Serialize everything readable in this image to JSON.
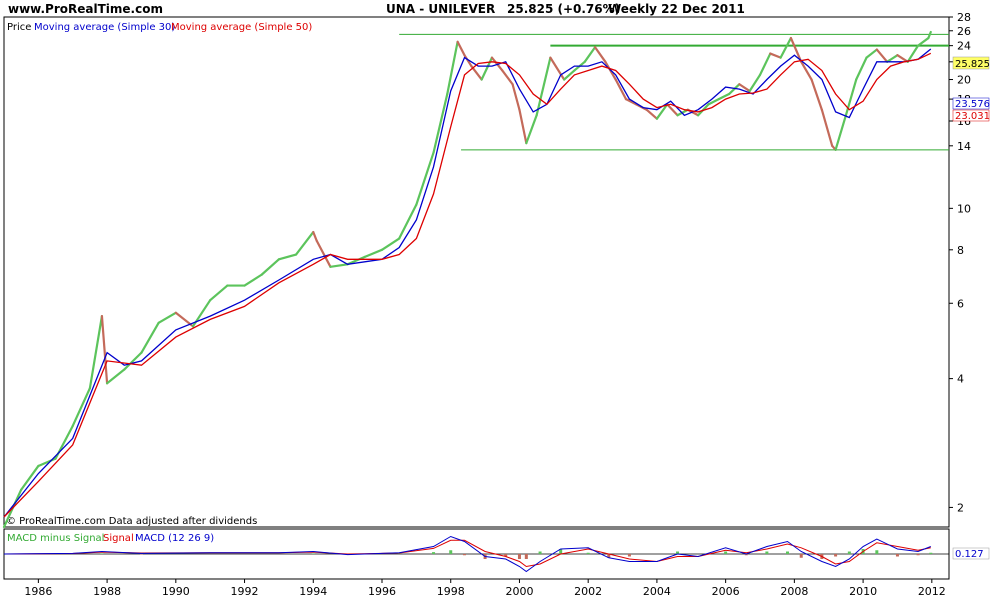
{
  "header": {
    "site": "www.ProRealTime.com",
    "instrument": "UNA - UNILEVER",
    "last_price": "25.825 (+0.76%)",
    "period": "Weekly  22 Dec 2011"
  },
  "legend": {
    "price": "Price",
    "ma30": "Moving average (Simple 30)",
    "ma50": "Moving average (Simple 50)"
  },
  "footer_note": "© ProRealTime.com  Data adjusted after dividends",
  "macd_legend": {
    "hist": "MACD minus Signal",
    "signal": "Signal",
    "macd": "MACD (12 26 9)"
  },
  "price_labels": {
    "last": "25.825",
    "ma30": "23.576",
    "ma50": "23.031",
    "macd": "0.127"
  },
  "colors": {
    "price_up": "#5cc45c",
    "price_down": "#c46a5a",
    "ma30": "#0000cc",
    "ma50": "#dd0000",
    "hline": "#33aa33",
    "frame": "#000000"
  },
  "chart_data": {
    "type": "line",
    "title": "UNA - UNILEVER",
    "x_ticks": [
      "1986",
      "1988",
      "1990",
      "1992",
      "1994",
      "1996",
      "1998",
      "2000",
      "2002",
      "2004",
      "2006",
      "2008",
      "2010",
      "2012"
    ],
    "y_ticks": [
      "2",
      "4",
      "6",
      "8",
      "10",
      "14",
      "16",
      "18",
      "20",
      "22",
      "24",
      "26",
      "28"
    ],
    "y_scale": "log",
    "ylim": [
      1.8,
      28
    ],
    "xlim": [
      1985.0,
      2012.5
    ],
    "series": [
      {
        "name": "Price",
        "x": [
          1985.0,
          1985.5,
          1986.0,
          1986.5,
          1987.0,
          1987.5,
          1987.85,
          1988.0,
          1988.5,
          1989.0,
          1989.5,
          1990.0,
          1990.5,
          1991.0,
          1991.5,
          1992.0,
          1992.5,
          1993.0,
          1993.5,
          1994.0,
          1994.1,
          1994.5,
          1995.0,
          1995.5,
          1996.0,
          1996.5,
          1997.0,
          1997.5,
          1997.9,
          1998.2,
          1998.4,
          1998.6,
          1998.9,
          1999.2,
          1999.5,
          1999.8,
          2000.0,
          2000.2,
          2000.5,
          2000.9,
          2001.3,
          2001.6,
          2001.9,
          2002.2,
          2002.5,
          2002.8,
          2003.1,
          2003.4,
          2003.7,
          2004.0,
          2004.3,
          2004.6,
          2004.9,
          2005.2,
          2005.5,
          2005.8,
          2006.1,
          2006.4,
          2006.7,
          2007.0,
          2007.3,
          2007.6,
          2007.9,
          2008.2,
          2008.5,
          2008.8,
          2009.1,
          2009.2,
          2009.5,
          2009.8,
          2010.1,
          2010.4,
          2010.7,
          2011.0,
          2011.3,
          2011.6,
          2011.9,
          2011.97
        ],
        "values": [
          1.8,
          2.2,
          2.5,
          2.6,
          3.1,
          3.8,
          5.6,
          3.9,
          4.2,
          4.6,
          5.4,
          5.7,
          5.3,
          6.1,
          6.6,
          6.6,
          7.0,
          7.6,
          7.8,
          8.8,
          8.4,
          7.3,
          7.4,
          7.7,
          8.0,
          8.5,
          10.2,
          13.5,
          18.5,
          24.5,
          22.8,
          21.5,
          20.0,
          22.5,
          21.0,
          19.5,
          17.0,
          14.2,
          16.5,
          22.5,
          20.0,
          21.0,
          22.0,
          23.8,
          22.0,
          20.0,
          18.0,
          17.5,
          17.0,
          16.2,
          17.5,
          16.5,
          17.0,
          16.5,
          17.5,
          18.0,
          18.5,
          19.5,
          18.8,
          20.5,
          23.0,
          22.5,
          25.0,
          22.0,
          20.0,
          17.0,
          14.0,
          13.7,
          16.5,
          20.0,
          22.5,
          23.5,
          22.0,
          22.8,
          22.0,
          24.0,
          25.0,
          25.825
        ]
      },
      {
        "name": "Moving average (Simple 30)",
        "x": [
          1985.0,
          1986.0,
          1987.0,
          1988.0,
          1988.5,
          1989.0,
          1990.0,
          1991.0,
          1992.0,
          1993.0,
          1994.0,
          1994.5,
          1995.0,
          1996.0,
          1996.5,
          1997.0,
          1997.5,
          1998.0,
          1998.4,
          1998.8,
          1999.2,
          1999.6,
          2000.0,
          2000.4,
          2000.8,
          2001.2,
          2001.6,
          2002.0,
          2002.4,
          2002.8,
          2003.2,
          2003.6,
          2004.0,
          2004.4,
          2004.8,
          2005.2,
          2005.6,
          2006.0,
          2006.4,
          2006.8,
          2007.2,
          2007.6,
          2008.0,
          2008.4,
          2008.8,
          2009.2,
          2009.6,
          2010.0,
          2010.4,
          2010.8,
          2011.2,
          2011.6,
          2011.97
        ],
        "values": [
          1.9,
          2.4,
          2.9,
          4.6,
          4.3,
          4.4,
          5.2,
          5.6,
          6.1,
          6.8,
          7.6,
          7.8,
          7.4,
          7.6,
          8.1,
          9.4,
          12.5,
          18.8,
          22.5,
          21.5,
          21.5,
          22.0,
          19.0,
          16.8,
          17.5,
          20.5,
          21.5,
          21.5,
          22.0,
          20.5,
          18.0,
          17.2,
          17.0,
          17.8,
          16.5,
          17.0,
          18.0,
          19.2,
          19.0,
          18.5,
          20.0,
          21.5,
          22.8,
          21.5,
          20.0,
          16.8,
          16.3,
          19.0,
          22.0,
          22.0,
          22.0,
          22.3,
          23.576
        ]
      },
      {
        "name": "Moving average (Simple 50)",
        "x": [
          1985.0,
          1986.0,
          1987.0,
          1988.0,
          1989.0,
          1990.0,
          1991.0,
          1992.0,
          1993.0,
          1994.0,
          1994.5,
          1995.0,
          1996.0,
          1996.5,
          1997.0,
          1997.5,
          1998.0,
          1998.4,
          1998.8,
          1999.2,
          1999.6,
          2000.0,
          2000.4,
          2000.8,
          2001.2,
          2001.6,
          2002.0,
          2002.4,
          2002.8,
          2003.2,
          2003.6,
          2004.0,
          2004.4,
          2004.8,
          2005.2,
          2005.6,
          2006.0,
          2006.4,
          2006.8,
          2007.2,
          2007.6,
          2008.0,
          2008.4,
          2008.8,
          2009.2,
          2009.6,
          2010.0,
          2010.4,
          2010.8,
          2011.2,
          2011.6,
          2011.97
        ],
        "values": [
          1.9,
          2.3,
          2.8,
          4.4,
          4.3,
          5.0,
          5.5,
          5.9,
          6.7,
          7.4,
          7.8,
          7.6,
          7.6,
          7.8,
          8.5,
          10.8,
          15.5,
          20.5,
          21.8,
          22.0,
          21.8,
          20.5,
          18.5,
          17.5,
          19.0,
          20.5,
          21.0,
          21.5,
          21.0,
          19.5,
          18.0,
          17.2,
          17.5,
          17.0,
          16.8,
          17.2,
          18.0,
          18.5,
          18.6,
          19.0,
          20.5,
          22.0,
          22.3,
          21.0,
          18.5,
          17.0,
          17.8,
          20.0,
          21.5,
          22.0,
          22.3,
          23.031
        ]
      }
    ],
    "reference_lines": [
      {
        "y": 25.5,
        "x_start": 1996.5,
        "x_end": 2012.5
      },
      {
        "y": 24.0,
        "x_start": 2000.9,
        "x_end": 2012.5
      },
      {
        "y": 13.7,
        "x_start": 1998.3,
        "x_end": 2012.5
      }
    ],
    "macd": {
      "x": [
        1985.0,
        1987.0,
        1987.85,
        1989.0,
        1991.0,
        1993.0,
        1994.0,
        1995.0,
        1996.5,
        1997.5,
        1998.0,
        1998.4,
        1999.0,
        1999.6,
        2000.0,
        2000.2,
        2000.6,
        2001.2,
        2002.0,
        2002.6,
        2003.2,
        2004.0,
        2004.6,
        2005.2,
        2006.0,
        2006.6,
        2007.2,
        2007.8,
        2008.2,
        2008.8,
        2009.2,
        2009.6,
        2010.0,
        2010.4,
        2011.0,
        2011.6,
        2011.97
      ],
      "macd": [
        0.0,
        0.05,
        0.2,
        0.05,
        0.1,
        0.1,
        0.2,
        -0.05,
        0.1,
        0.6,
        1.4,
        1.0,
        -0.2,
        -0.4,
        -1.0,
        -1.4,
        -0.6,
        0.4,
        0.5,
        -0.3,
        -0.6,
        -0.6,
        0.0,
        -0.2,
        0.5,
        0.0,
        0.6,
        1.0,
        0.2,
        -0.6,
        -1.0,
        -0.4,
        0.6,
        1.2,
        0.4,
        0.2,
        0.6
      ],
      "signal": [
        0.0,
        0.04,
        0.15,
        0.08,
        0.1,
        0.1,
        0.15,
        0.0,
        0.08,
        0.45,
        1.1,
        1.1,
        0.2,
        -0.2,
        -0.6,
        -1.0,
        -0.8,
        0.0,
        0.4,
        0.0,
        -0.4,
        -0.6,
        -0.2,
        -0.2,
        0.3,
        0.1,
        0.4,
        0.8,
        0.5,
        -0.2,
        -0.8,
        -0.6,
        0.2,
        0.9,
        0.6,
        0.3,
        0.5
      ],
      "last": 0.127
    }
  }
}
